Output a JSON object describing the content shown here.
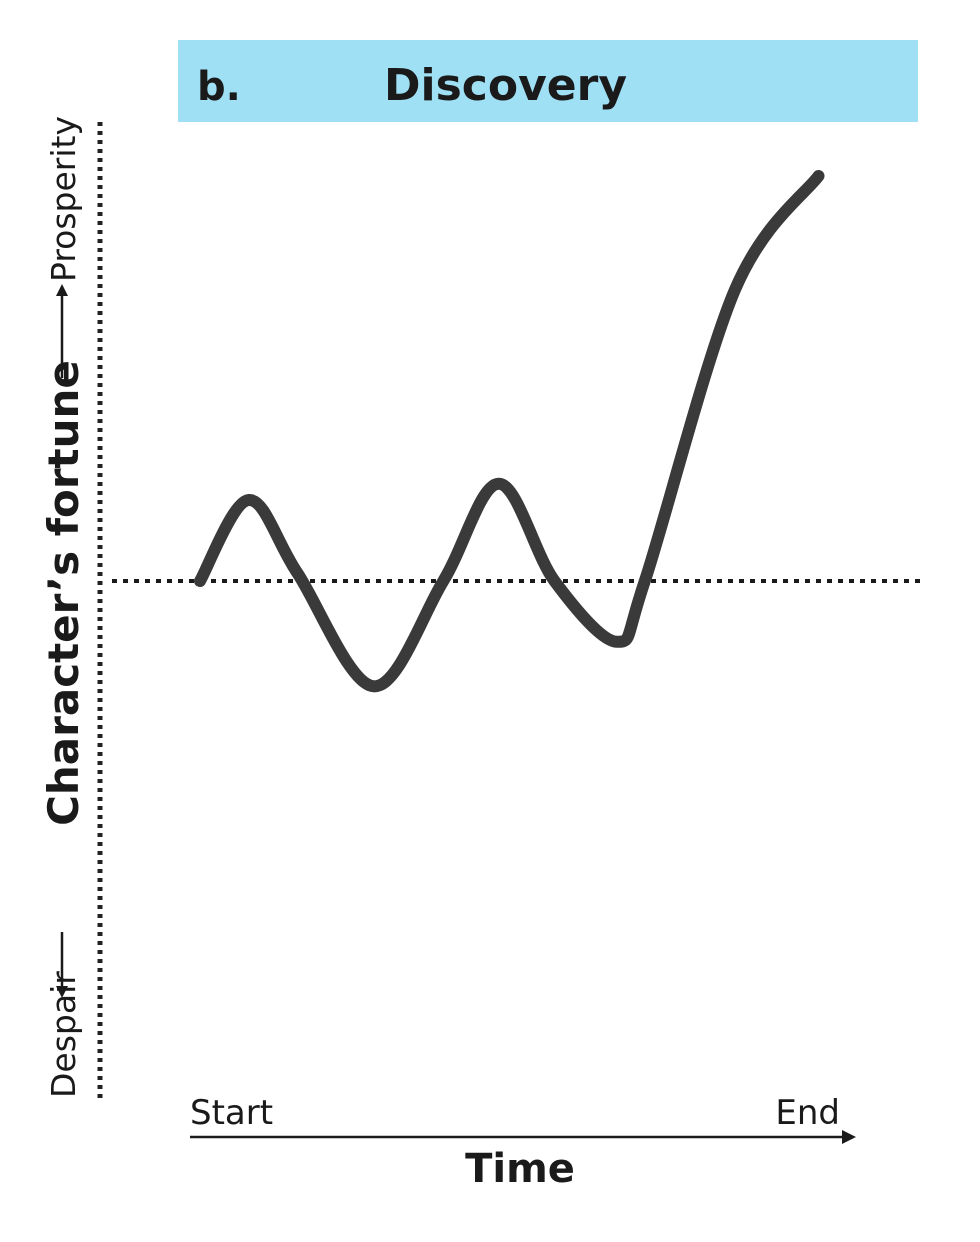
{
  "chart_data": {
    "type": "line",
    "panel_label": "b.",
    "title": "Discovery",
    "xlabel": "Time",
    "x_start_label": "Start",
    "x_end_label": "End",
    "ylabel": "Character’s fortune",
    "y_low_label": "Despair",
    "y_high_label": "Prosperity",
    "xlim": [
      0,
      1
    ],
    "ylim": [
      -1,
      1
    ],
    "baseline": 0,
    "grid": false,
    "series": [
      {
        "points": [
          [
            0.0,
            0.0
          ],
          [
            0.07,
            0.2
          ],
          [
            0.14,
            0.02
          ],
          [
            0.25,
            -0.26
          ],
          [
            0.35,
            0.0
          ],
          [
            0.43,
            0.24
          ],
          [
            0.51,
            0.0
          ],
          [
            0.6,
            -0.15
          ],
          [
            0.64,
            0.0
          ],
          [
            0.77,
            0.72
          ],
          [
            0.89,
            1.0
          ]
        ]
      }
    ]
  },
  "colors": {
    "title_band": "#9fe0f5",
    "curve": "#3a3a3a",
    "text": "#1a1a1a"
  }
}
